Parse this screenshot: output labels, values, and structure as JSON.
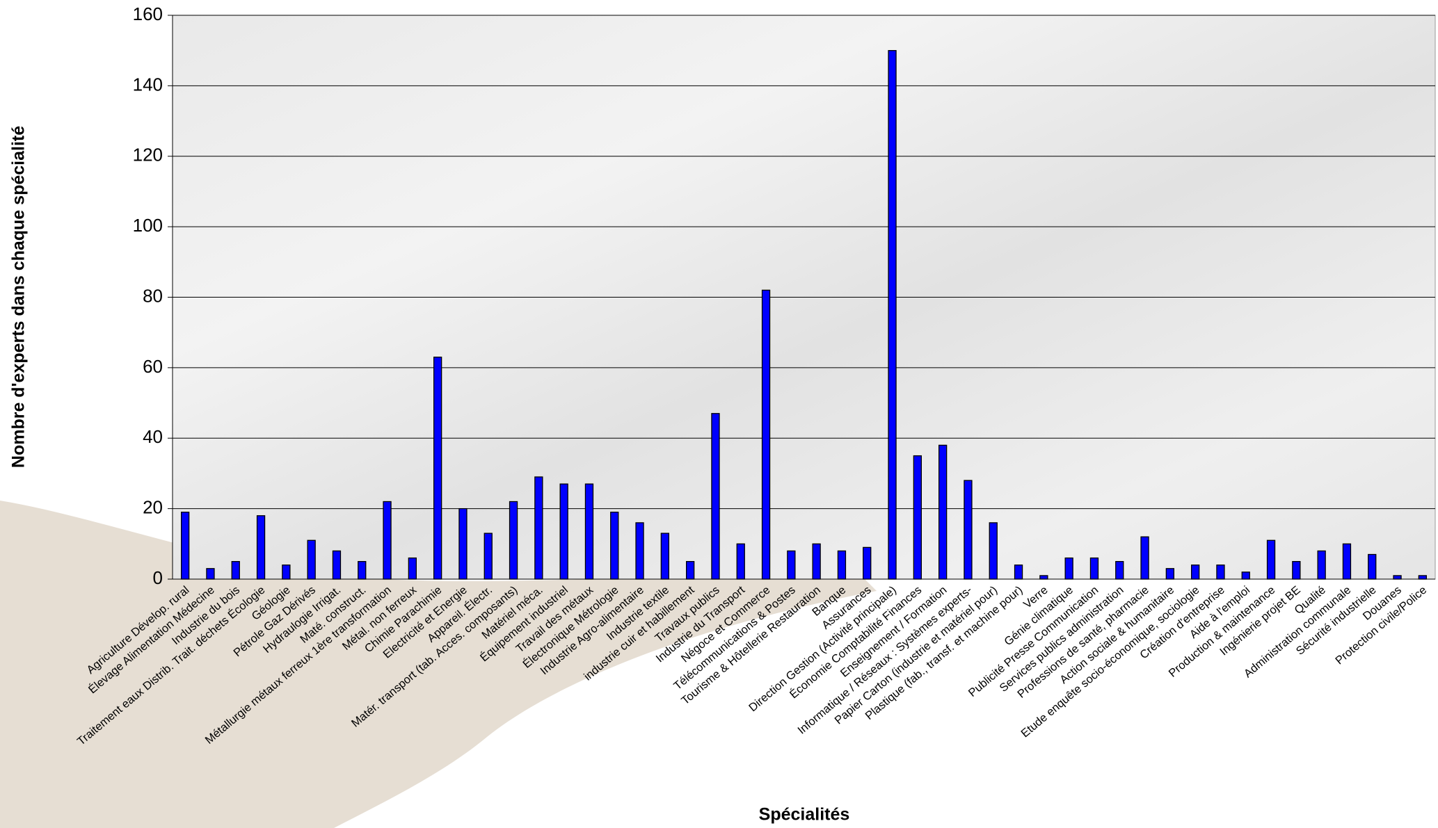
{
  "chart_data": {
    "type": "bar",
    "x_label": "Spécialités",
    "y_label": "Nombre d'experts dans chaque spécialité",
    "categories": [
      "Agriculture Dévelop. rural",
      "Élevage Alimentation  Médecine",
      "Industrie du bois",
      "Traitement eaux Distrib. Trait. déchets Écologie",
      "Géologie",
      "Pétrole Gaz Dérivés",
      "Hydraulogie Irrigat.",
      "Maté. construct.",
      "Métallurgie métaux ferreux 1ère transformation",
      "Métal. non ferreux",
      "Chimie Parachimie",
      "Electricité et Energie",
      "Appareil. Électr.",
      "Matér. transport (tab. Acces. composants)",
      "Matériel méca.",
      "Équipement industriel",
      "Travail des métaux",
      "Électronique Métrologie",
      "Industrie Agro-alimentaire",
      "Industrie textile",
      "industrie cuir et habillement",
      "Travaux publics",
      "Industrie du Transport",
      "Négoce et Commerce",
      "Télécommunications & Postes",
      "Tourisme & Hôtellerie Restauration",
      "Banque",
      "Assurances",
      "Direction Gestion (Activité principale)",
      "Économie Comptabilité Finances",
      "Enseignement / Formation",
      "Informatique / Réseaux : Systèmes experts-",
      "Papier Carton (industrie et matériel pour)",
      "Plastique (fab., transf. et machine pour)",
      "Verre",
      "Génie climatique",
      "Publicité Presse Communication",
      "Services publics administration",
      "Professions de santé, pharmacie",
      "Action sociale & humanitaire",
      "Etude enquête socio-économique, sociologie",
      "Création d'entreprise",
      "Aide à l'emploi",
      "Production & maintenance",
      "Ingénierie projet BE",
      "Qualité",
      "Administration communale",
      "Sécurité industrielle",
      "Douanes",
      "Protection civile/Police"
    ],
    "values": [
      19,
      3,
      5,
      18,
      4,
      11,
      8,
      5,
      22,
      6,
      63,
      20,
      13,
      22,
      29,
      27,
      27,
      19,
      16,
      13,
      5,
      47,
      10,
      82,
      8,
      10,
      8,
      9,
      150,
      35,
      38,
      28,
      16,
      4,
      1,
      6,
      6,
      5,
      12,
      3,
      4,
      4,
      2,
      11,
      5,
      8,
      10,
      7,
      1,
      1
    ],
    "color": "#0000ff",
    "ylim": [
      0,
      160
    ],
    "yticks": [
      0,
      20,
      40,
      60,
      80,
      100,
      120,
      140,
      160
    ],
    "grid": true
  }
}
